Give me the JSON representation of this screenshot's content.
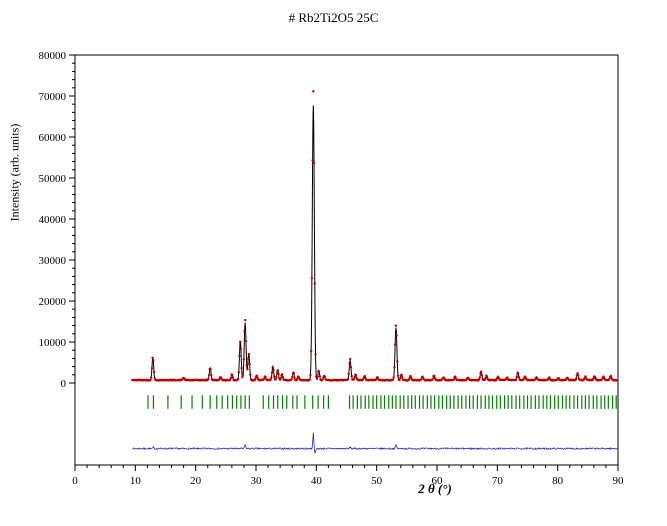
{
  "chart_data": {
    "type": "line",
    "title": "# Rb2Ti2O5 25C",
    "xlabel": "2 θ  (°)",
    "ylabel": "Intensity (arb. units)",
    "xlim": [
      0,
      90
    ],
    "ylim": [
      -20000,
      80000
    ],
    "x_ticks": [
      0,
      10,
      20,
      30,
      40,
      50,
      60,
      70,
      80,
      90
    ],
    "y_ticks": [
      0,
      10000,
      20000,
      30000,
      40000,
      50000,
      60000,
      70000,
      80000
    ],
    "x_minor_step": 2,
    "y_minor_step": 2000,
    "grid": false,
    "legend": "none",
    "background_level": 700,
    "pattern_x_start": 9.5,
    "pattern_x_end": 90,
    "series": [
      {
        "name": "observed",
        "style": "points",
        "color": "#bb0000"
      },
      {
        "name": "calculated",
        "style": "line",
        "color": "#000000"
      },
      {
        "name": "bragg-reflections",
        "style": "ticks",
        "color": "#0b7d0b",
        "tick_top": -3000,
        "tick_bottom": -6300
      },
      {
        "name": "difference",
        "style": "line",
        "color": "#2a2ab0",
        "baseline": -16000
      }
    ],
    "peaks": [
      [
        12.9,
        5600,
        0.16
      ],
      [
        18.0,
        600,
        0.15
      ],
      [
        22.4,
        3000,
        0.16
      ],
      [
        24.1,
        700,
        0.15
      ],
      [
        26.0,
        1400,
        0.15
      ],
      [
        27.4,
        9500,
        0.17
      ],
      [
        28.2,
        14000,
        0.18
      ],
      [
        28.8,
        6500,
        0.17
      ],
      [
        30.1,
        1100,
        0.15
      ],
      [
        31.5,
        900,
        0.15
      ],
      [
        32.8,
        3300,
        0.16
      ],
      [
        33.6,
        2400,
        0.16
      ],
      [
        34.3,
        1400,
        0.15
      ],
      [
        36.2,
        1900,
        0.15
      ],
      [
        37.0,
        900,
        0.15
      ],
      [
        39.5,
        67000,
        0.2
      ],
      [
        40.4,
        2400,
        0.15
      ],
      [
        41.3,
        1100,
        0.15
      ],
      [
        45.6,
        4800,
        0.17
      ],
      [
        46.5,
        1400,
        0.15
      ],
      [
        48.0,
        900,
        0.15
      ],
      [
        50.1,
        700,
        0.15
      ],
      [
        53.2,
        12800,
        0.18
      ],
      [
        54.1,
        1400,
        0.15
      ],
      [
        55.6,
        900,
        0.15
      ],
      [
        57.6,
        800,
        0.15
      ],
      [
        59.5,
        1100,
        0.15
      ],
      [
        61.1,
        700,
        0.15
      ],
      [
        63.0,
        800,
        0.15
      ],
      [
        65.1,
        600,
        0.15
      ],
      [
        67.3,
        2100,
        0.16
      ],
      [
        68.2,
        1100,
        0.15
      ],
      [
        70.1,
        800,
        0.15
      ],
      [
        71.6,
        600,
        0.15
      ],
      [
        73.4,
        1900,
        0.16
      ],
      [
        74.6,
        900,
        0.15
      ],
      [
        76.5,
        700,
        0.15
      ],
      [
        78.6,
        600,
        0.15
      ],
      [
        80.1,
        500,
        0.15
      ],
      [
        81.6,
        600,
        0.15
      ],
      [
        83.3,
        1600,
        0.16
      ],
      [
        84.6,
        800,
        0.15
      ],
      [
        86.1,
        1000,
        0.15
      ],
      [
        87.6,
        800,
        0.15
      ],
      [
        88.8,
        1100,
        0.15
      ]
    ],
    "bragg_positions": [
      12.1,
      13.0,
      15.4,
      17.6,
      19.4,
      21.1,
      22.4,
      23.5,
      24.4,
      25.3,
      26.1,
      26.8,
      27.5,
      28.2,
      28.9,
      31.2,
      32.1,
      32.9,
      33.6,
      34.4,
      35.1,
      36.1,
      36.8,
      38.1,
      39.4,
      40.3,
      41.2,
      42.0,
      45.5,
      46.1,
      46.8,
      47.4,
      48.1,
      48.7,
      49.4,
      50.0,
      50.7,
      51.3,
      52.0,
      52.6,
      53.2,
      53.9,
      54.5,
      55.2,
      55.8,
      56.4,
      57.1,
      57.7,
      58.4,
      59.0,
      59.6,
      60.3,
      60.9,
      61.6,
      62.2,
      62.8,
      63.5,
      64.1,
      64.8,
      65.4,
      66.0,
      66.7,
      67.3,
      68.0,
      68.6,
      69.2,
      69.9,
      70.5,
      71.2,
      71.8,
      72.4,
      73.1,
      73.7,
      74.4,
      75.0,
      75.6,
      76.3,
      76.9,
      77.6,
      78.2,
      78.8,
      79.5,
      80.1,
      80.8,
      81.4,
      82.0,
      82.7,
      83.3,
      84.0,
      84.6,
      85.2,
      85.9,
      86.5,
      87.2,
      87.8,
      88.4,
      89.1,
      89.7
    ],
    "difference_features": [
      [
        39.5,
        3800,
        0.1
      ],
      [
        39.8,
        -1200,
        0.12
      ],
      [
        28.2,
        900,
        0.12
      ],
      [
        53.2,
        800,
        0.12
      ],
      [
        45.6,
        400,
        0.1
      ],
      [
        13.0,
        300,
        0.1
      ]
    ]
  }
}
